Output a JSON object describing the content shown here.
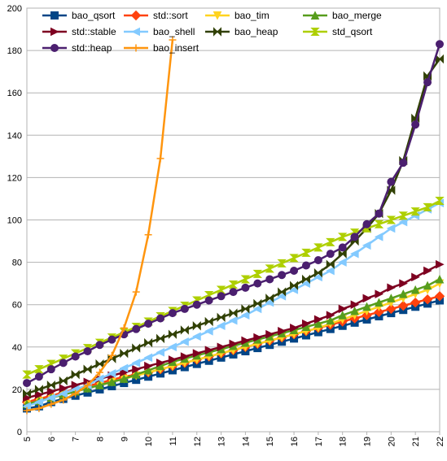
{
  "chart_data": {
    "type": "line",
    "title": "",
    "xlabel": "",
    "ylabel": "",
    "x_ticks": [
      "5",
      "6",
      "7",
      "8",
      "9",
      "10",
      "11",
      "12",
      "13",
      "14",
      "15",
      "16",
      "17",
      "18",
      "19",
      "20",
      "21",
      "22"
    ],
    "y_ticks": [
      "0",
      "20",
      "40",
      "60",
      "80",
      "100",
      "120",
      "140",
      "160",
      "180",
      "200"
    ],
    "xlim": [
      5,
      22
    ],
    "ylim": [
      0,
      200
    ],
    "grid": "horizontal",
    "legend_position": "top-left",
    "series": [
      {
        "name": "bao_qsort",
        "color": "#004586",
        "marker": "square",
        "x": [
          5,
          5.5,
          6,
          6.5,
          7,
          7.5,
          8,
          8.5,
          9,
          9.5,
          10,
          10.5,
          11,
          11.5,
          12,
          12.5,
          13,
          13.5,
          14,
          14.5,
          15,
          15.5,
          16,
          16.5,
          17,
          17.5,
          18,
          18.5,
          19,
          19.5,
          20,
          20.5,
          21,
          21.5,
          22
        ],
        "y": [
          11,
          12,
          14,
          15.5,
          17,
          18.5,
          20,
          21.5,
          23,
          24.5,
          26,
          27.5,
          29,
          30.5,
          32,
          33.5,
          35,
          36.5,
          38,
          39.5,
          41,
          42.5,
          44,
          45.5,
          47,
          48.5,
          50,
          51.5,
          53,
          54.5,
          56,
          57.5,
          59,
          60.5,
          62
        ]
      },
      {
        "name": "std::sort",
        "color": "#ff420e",
        "marker": "diamond",
        "x": [
          5,
          5.5,
          6,
          6.5,
          7,
          7.5,
          8,
          8.5,
          9,
          9.5,
          10,
          10.5,
          11,
          11.5,
          12,
          12.5,
          13,
          13.5,
          14,
          14.5,
          15,
          15.5,
          16,
          16.5,
          17,
          17.5,
          18,
          18.5,
          19,
          19.5,
          20,
          20.5,
          21,
          21.5,
          22
        ],
        "y": [
          14,
          15.5,
          17,
          18.5,
          20,
          21.5,
          23,
          24.5,
          26,
          27,
          28,
          29.5,
          31,
          32.5,
          34,
          35.5,
          37,
          38.5,
          40,
          41.5,
          43,
          44.5,
          46,
          47.5,
          49,
          50.5,
          52,
          53.5,
          55,
          56.5,
          58,
          59.5,
          61,
          62.5,
          64
        ]
      },
      {
        "name": "bao_tim",
        "color": "#ffd320",
        "marker": "triangle-down",
        "x": [
          5,
          5.5,
          6,
          6.5,
          7,
          7.5,
          8,
          8.5,
          9,
          9.5,
          10,
          10.5,
          11,
          11.5,
          12,
          12.5,
          13,
          13.5,
          14,
          14.5,
          15,
          15.5,
          16,
          16.5,
          17,
          17.5,
          18,
          18.5,
          19,
          19.5,
          20,
          20.5,
          21,
          21.5,
          22
        ],
        "y": [
          13,
          14.5,
          16,
          17.5,
          19,
          20.5,
          22,
          23.5,
          25,
          26.5,
          28,
          29.5,
          31,
          32.5,
          34,
          35.5,
          37,
          38.5,
          40,
          41.5,
          43,
          44.5,
          46,
          47.5,
          49,
          51,
          53,
          55,
          57,
          59,
          61,
          63,
          65,
          67,
          70
        ]
      },
      {
        "name": "bao_merge",
        "color": "#579d1c",
        "marker": "triangle-up",
        "x": [
          5,
          5.5,
          6,
          6.5,
          7,
          7.5,
          8,
          8.5,
          9,
          9.5,
          10,
          10.5,
          11,
          11.5,
          12,
          12.5,
          13,
          13.5,
          14,
          14.5,
          15,
          15.5,
          16,
          16.5,
          17,
          17.5,
          18,
          18.5,
          19,
          19.5,
          20,
          20.5,
          21,
          21.5,
          22
        ],
        "y": [
          13,
          14.5,
          16,
          17.5,
          19,
          20.5,
          22,
          23.5,
          25,
          27,
          29,
          31,
          33,
          34.5,
          36,
          37.5,
          39,
          40.5,
          42,
          43.5,
          45,
          46.5,
          48,
          49.5,
          51,
          52.5,
          55,
          57,
          59,
          61,
          63,
          65,
          67,
          69,
          72
        ]
      },
      {
        "name": "std::stable",
        "color": "#7e0021",
        "marker": "triangle-right",
        "x": [
          5,
          5.5,
          6,
          6.5,
          7,
          7.5,
          8,
          8.5,
          9,
          9.5,
          10,
          10.5,
          11,
          11.5,
          12,
          12.5,
          13,
          13.5,
          14,
          14.5,
          15,
          15.5,
          16,
          16.5,
          17,
          17.5,
          18,
          18.5,
          19,
          19.5,
          20,
          20.5,
          21,
          21.5,
          22
        ],
        "y": [
          16,
          17.5,
          19,
          20.5,
          22,
          23.5,
          25,
          26.5,
          28,
          29.5,
          31,
          32.5,
          34,
          35.5,
          37,
          38.5,
          40,
          41.5,
          43,
          44.5,
          46,
          47.5,
          49,
          51,
          53,
          55,
          58,
          60,
          63,
          65,
          68,
          70,
          73,
          76,
          79
        ]
      },
      {
        "name": "bao_shell",
        "color": "#83caff",
        "marker": "triangle-left",
        "x": [
          5,
          5.5,
          6,
          6.5,
          7,
          7.5,
          8,
          8.5,
          9,
          9.5,
          10,
          10.5,
          11,
          11.5,
          12,
          12.5,
          13,
          13.5,
          14,
          14.5,
          15,
          15.5,
          16,
          16.5,
          17,
          17.5,
          18,
          18.5,
          19,
          19.5,
          20,
          20.5,
          21,
          21.5,
          22
        ],
        "y": [
          12,
          14,
          16,
          18,
          20,
          22,
          25,
          27.5,
          30,
          32.5,
          35,
          37.5,
          40,
          42.5,
          45,
          47.5,
          50,
          52.5,
          55,
          58,
          61,
          64,
          67,
          70,
          73,
          76,
          80,
          84,
          88,
          92,
          96,
          99,
          102,
          105,
          108
        ]
      },
      {
        "name": "bao_heap",
        "color": "#314004",
        "marker": "bowtie",
        "x": [
          5,
          5.5,
          6,
          6.5,
          7,
          7.5,
          8,
          8.5,
          9,
          9.5,
          10,
          10.5,
          11,
          11.5,
          12,
          12.5,
          13,
          13.5,
          14,
          14.5,
          15,
          15.5,
          16,
          16.5,
          17,
          17.5,
          18,
          18.5,
          19,
          19.5,
          20,
          20.5,
          21,
          21.5,
          22
        ],
        "y": [
          18,
          20,
          22,
          24,
          27,
          29.5,
          32,
          34.5,
          37,
          39.5,
          42,
          44,
          46,
          48,
          50,
          52,
          54,
          56,
          58,
          60.5,
          63,
          66,
          69,
          72,
          75,
          79,
          84,
          90,
          96,
          103,
          114,
          128,
          148,
          168,
          176
        ]
      },
      {
        "name": "std_qsort",
        "color": "#aecf00",
        "marker": "hourglass",
        "x": [
          5,
          5.5,
          6,
          6.5,
          7,
          7.5,
          8,
          8.5,
          9,
          9.5,
          10,
          10.5,
          11,
          11.5,
          12,
          12.5,
          13,
          13.5,
          14,
          14.5,
          15,
          15.5,
          16,
          16.5,
          17,
          17.5,
          18,
          18.5,
          19,
          19.5,
          20,
          20.5,
          21,
          21.5,
          22
        ],
        "y": [
          27,
          29.5,
          32,
          34.5,
          37,
          39.5,
          42,
          44.5,
          47,
          49.5,
          52,
          54.5,
          57,
          59.5,
          62,
          64.5,
          67,
          69.5,
          72,
          74.5,
          77,
          79.5,
          82,
          84.5,
          87,
          89.5,
          92,
          94,
          96,
          98,
          100,
          102,
          104,
          106,
          109
        ]
      },
      {
        "name": "std::heap",
        "color": "#4b1f6f",
        "marker": "circle",
        "x": [
          5,
          5.5,
          6,
          6.5,
          7,
          7.5,
          8,
          8.5,
          9,
          9.5,
          10,
          10.5,
          11,
          11.5,
          12,
          12.5,
          13,
          13.5,
          14,
          14.5,
          15,
          15.5,
          16,
          16.5,
          17,
          17.5,
          18,
          18.5,
          19,
          19.5,
          20,
          20.5,
          21,
          21.5,
          22
        ],
        "y": [
          23,
          26,
          29.5,
          32.5,
          35.5,
          38,
          41,
          43.5,
          46,
          48.5,
          51,
          53.5,
          56,
          58,
          60,
          62,
          64,
          66,
          68,
          70,
          72,
          74,
          76,
          78.5,
          81,
          84,
          87,
          92,
          98,
          103,
          118,
          127,
          145,
          165,
          183
        ]
      },
      {
        "name": "bao_insert",
        "color": "#ff950e",
        "marker": "plus",
        "x": [
          5,
          5.5,
          6,
          6.5,
          7,
          7.5,
          8,
          8.5,
          9,
          9.5,
          10,
          10.5,
          11
        ],
        "y": [
          10,
          11,
          13,
          15,
          18,
          22,
          28,
          36,
          49,
          66,
          93,
          129,
          185
        ]
      }
    ]
  }
}
